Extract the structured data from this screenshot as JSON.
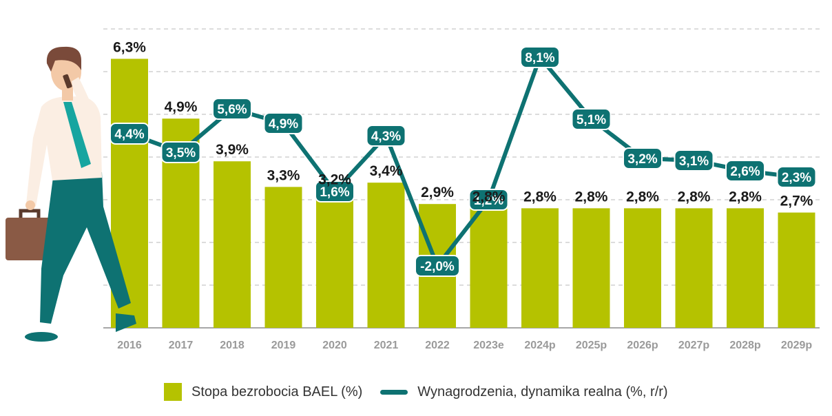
{
  "colors": {
    "bar": "#b5c200",
    "line": "#0e7272",
    "grid": "#c8c8c8",
    "axis": "#8a8a8a",
    "shirt": "#fbeee3",
    "tie": "#17a5a0",
    "pants": "#0e7272",
    "skin": "#f3c9a7",
    "hair": "#7a4a3a",
    "briefcase": "#8a5a45"
  },
  "chart_data": {
    "type": "bar",
    "categories": [
      "2016",
      "2017",
      "2018",
      "2019",
      "2020",
      "2021",
      "2022",
      "2023e",
      "2024p",
      "2025p",
      "2026p",
      "2027p",
      "2028p",
      "2029p"
    ],
    "series": [
      {
        "name": "Stopa bezrobocia BAEL (%)",
        "type": "bar",
        "values": [
          6.3,
          4.9,
          3.9,
          3.3,
          3.2,
          3.4,
          2.9,
          2.8,
          2.8,
          2.8,
          2.8,
          2.8,
          2.8,
          2.7
        ],
        "labels": [
          "6,3%",
          "4,9%",
          "3,9%",
          "3,3%",
          "3,2%",
          "3,4%",
          "2,9%",
          "2,8%",
          "2,8%",
          "2,8%",
          "2,8%",
          "2,8%",
          "2,8%",
          "2,7%"
        ]
      },
      {
        "name": "Wynagrodzenia, dynamika realna (%, r/r)",
        "type": "line",
        "values": [
          4.4,
          3.5,
          5.6,
          4.9,
          1.6,
          4.3,
          -2.0,
          1.2,
          8.1,
          5.1,
          3.2,
          3.1,
          2.6,
          2.3
        ],
        "labels": [
          "4,4%",
          "3,5%",
          "5,6%",
          "4,9%",
          "1,6%",
          "4,3%",
          "-2,0%",
          "1,2%",
          "8,1%",
          "5,1%",
          "3,2%",
          "3,1%",
          "2,6%",
          "2,3%"
        ]
      }
    ],
    "bar_axis": {
      "ylim": [
        0,
        7
      ]
    },
    "line_axis": {
      "ylim": [
        -4.5,
        9.5
      ]
    },
    "grid": true,
    "legend_position": "bottom"
  },
  "legend": {
    "bar_label": "Stopa bezrobocia BAEL (%)",
    "line_label": "Wynagrodzenia, dynamika realna (%, r/r)"
  }
}
